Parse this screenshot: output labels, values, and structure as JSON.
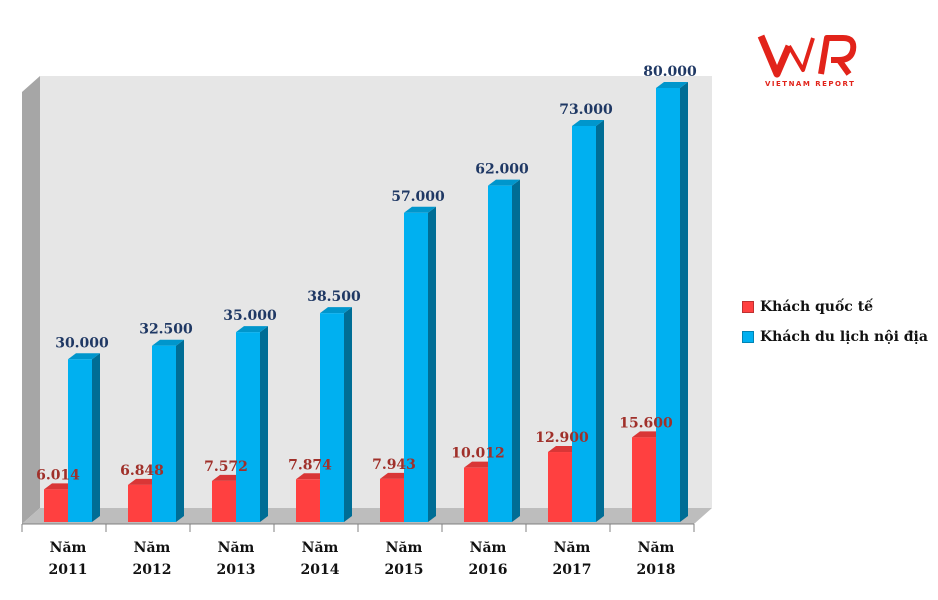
{
  "logo": {
    "name": "VNR",
    "tagline": "VIETNAM REPORT",
    "color": "#e2231a"
  },
  "legend": {
    "items": [
      {
        "label": "Khách quốc tế",
        "color": "#ff4040"
      },
      {
        "label": "Khách du lịch nội địa",
        "color": "#00b0f0"
      }
    ]
  },
  "chart_data": {
    "type": "bar",
    "title": "",
    "xlabel": "",
    "ylabel": "",
    "ylim": [
      0,
      80000
    ],
    "grid": false,
    "legend_position": "right",
    "categories": [
      "Năm 2011",
      "Năm 2012",
      "Năm 2013",
      "Năm 2014",
      "Năm 2015",
      "Năm 2016",
      "Năm 2017",
      "Năm 2018"
    ],
    "category_lines": [
      [
        "Năm",
        "2011"
      ],
      [
        "Năm",
        "2012"
      ],
      [
        "Năm",
        "2013"
      ],
      [
        "Năm",
        "2014"
      ],
      [
        "Năm",
        "2015"
      ],
      [
        "Năm",
        "2016"
      ],
      [
        "Năm",
        "2017"
      ],
      [
        "Năm",
        "2018"
      ]
    ],
    "series": [
      {
        "name": "Khách quốc tế",
        "color": "#ff4040",
        "label_color": "#a0302a",
        "values": [
          6014,
          6848,
          7572,
          7874,
          7943,
          10012,
          12900,
          15600
        ],
        "labels": [
          "6.014",
          "6.848",
          "7.572",
          "7.874",
          "7.943",
          "10.012",
          "12.900",
          "15.600"
        ]
      },
      {
        "name": "Khách du lịch nội địa",
        "color": "#00b0f0",
        "label_color": "#1f3864",
        "values": [
          30000,
          32500,
          35000,
          38500,
          57000,
          62000,
          73000,
          80000
        ],
        "labels": [
          "30.000",
          "32.500",
          "35.000",
          "38.500",
          "57.000",
          "62.000",
          "73.000",
          "80.000"
        ]
      }
    ]
  }
}
